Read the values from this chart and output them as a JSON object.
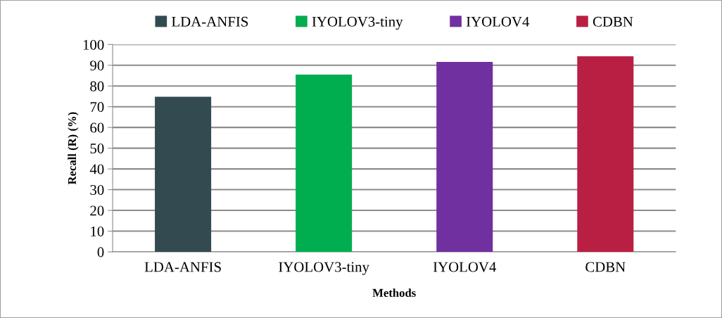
{
  "chart_data": {
    "type": "bar",
    "xlabel": "Methods",
    "ylabel": "Recall (R) (%)",
    "categories": [
      "LDA-ANFIS",
      "IYOLOV3-tiny",
      "IYOLOV4",
      "CDBN"
    ],
    "series": [
      {
        "name": "LDA-ANFIS",
        "color": "#334a51",
        "values": [
          74.8,
          null,
          null,
          null
        ]
      },
      {
        "name": "IYOLOV3-tiny",
        "color": "#00ae4f",
        "values": [
          null,
          85.5,
          null,
          null
        ]
      },
      {
        "name": "IYOLOV4",
        "color": "#7030a0",
        "values": [
          null,
          null,
          91.6,
          null
        ]
      },
      {
        "name": "CDBN",
        "color": "#b91f42",
        "values": [
          null,
          null,
          null,
          94.3
        ]
      }
    ],
    "ylim": [
      0,
      100
    ],
    "yticks": [
      0,
      10,
      20,
      30,
      40,
      50,
      60,
      70,
      80,
      90,
      100
    ],
    "grid": "y",
    "legend": "top"
  }
}
